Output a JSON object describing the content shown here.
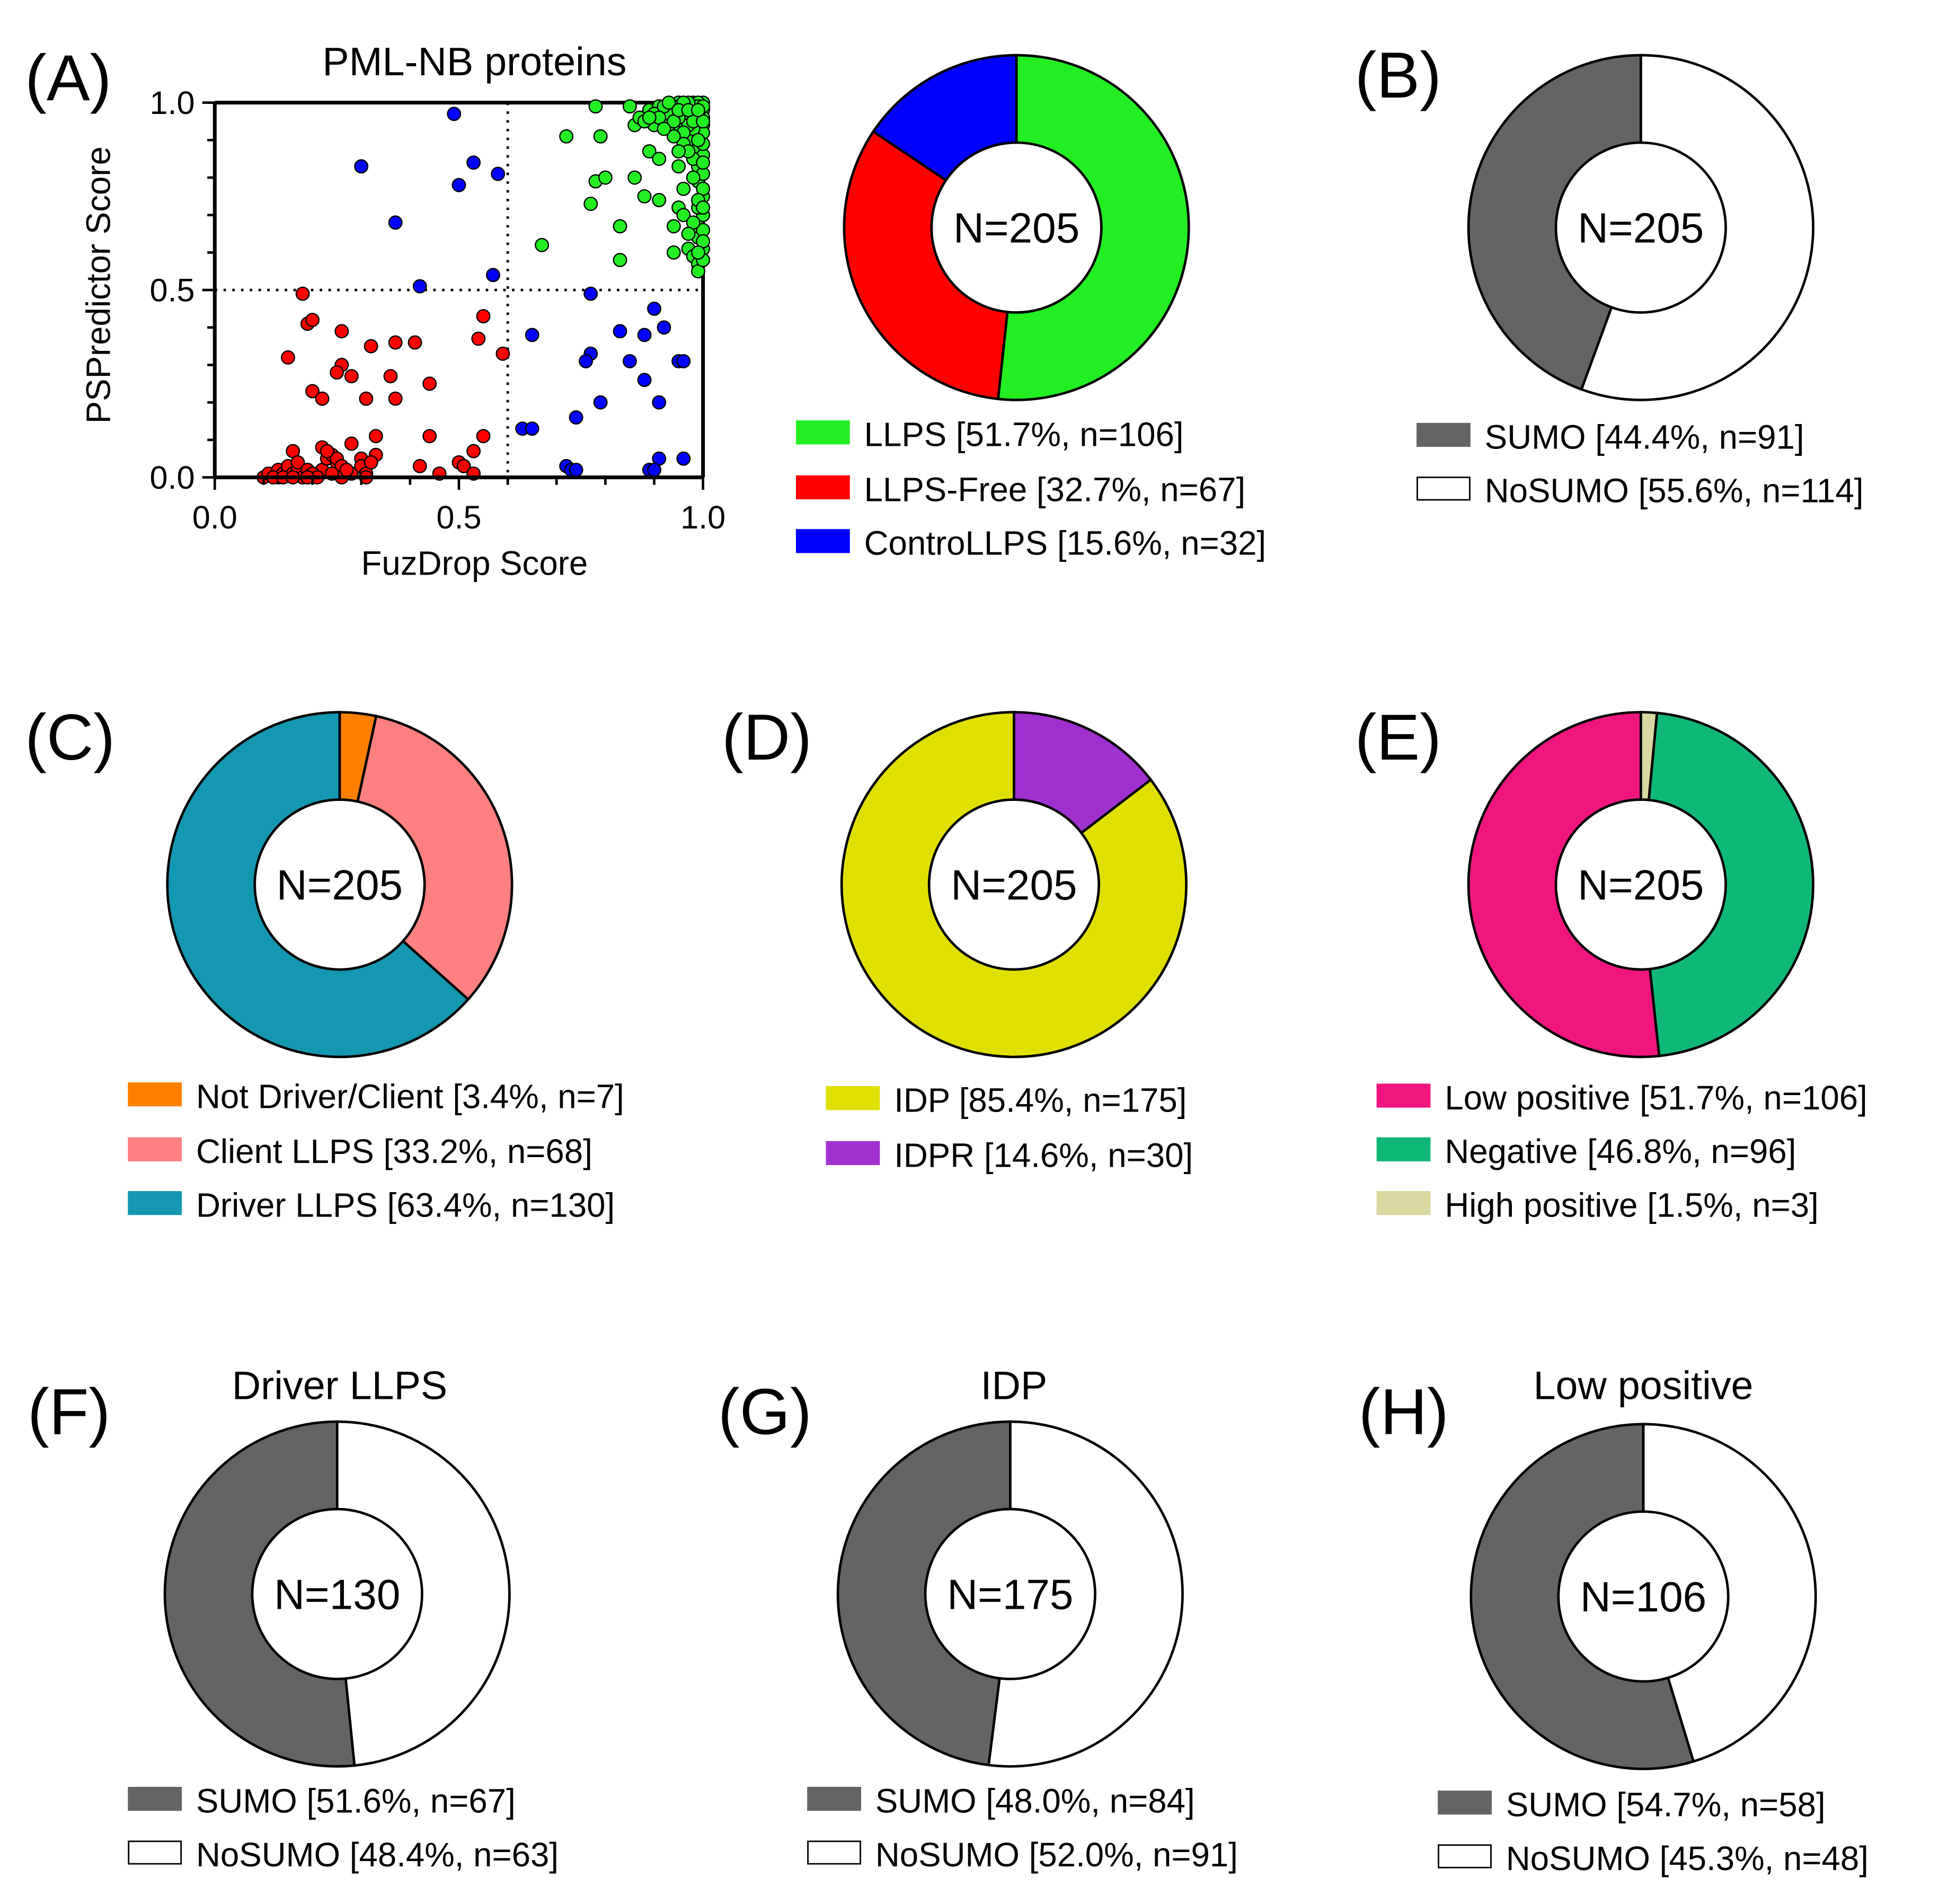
{
  "chart_data": [
    {
      "id": "A",
      "type": "scatter",
      "panel_label": "(A)",
      "title": "PML-NB proteins",
      "xlabel": "FuzDrop Score",
      "ylabel": "PSPredictor Score",
      "xlim": [
        0,
        1
      ],
      "ylim": [
        0,
        1
      ],
      "xticks": [
        "0.0",
        "0.5",
        "1.0"
      ],
      "yticks": [
        "0.0",
        "0.5",
        "1.0"
      ],
      "thresholds": {
        "x": 0.6,
        "y": 0.5
      },
      "series": [
        {
          "name": "ControLLPS",
          "color": "#0000ff",
          "points": [
            [
              0.49,
              0.97
            ],
            [
              0.3,
              0.83
            ],
            [
              0.53,
              0.84
            ],
            [
              0.5,
              0.78
            ],
            [
              0.58,
              0.81
            ],
            [
              0.37,
              0.68
            ],
            [
              0.42,
              0.51
            ],
            [
              0.57,
              0.54
            ],
            [
              0.77,
              0.49
            ],
            [
              0.9,
              0.45
            ],
            [
              0.83,
              0.39
            ],
            [
              0.92,
              0.4
            ],
            [
              0.88,
              0.38
            ],
            [
              0.65,
              0.38
            ],
            [
              0.77,
              0.33
            ],
            [
              0.76,
              0.31
            ],
            [
              0.85,
              0.31
            ],
            [
              0.95,
              0.31
            ],
            [
              0.96,
              0.31
            ],
            [
              0.88,
              0.26
            ],
            [
              0.79,
              0.2
            ],
            [
              0.91,
              0.2
            ],
            [
              0.74,
              0.16
            ],
            [
              0.63,
              0.13
            ],
            [
              0.65,
              0.13
            ],
            [
              0.72,
              0.03
            ],
            [
              0.73,
              0.02
            ],
            [
              0.74,
              0.02
            ],
            [
              0.91,
              0.05
            ],
            [
              0.96,
              0.05
            ],
            [
              0.89,
              0.02
            ],
            [
              0.9,
              0.02
            ]
          ]
        },
        {
          "name": "LLPS-Free",
          "color": "#ff0000",
          "points": [
            [
              0.18,
              0.49
            ],
            [
              0.19,
              0.41
            ],
            [
              0.2,
              0.42
            ],
            [
              0.26,
              0.39
            ],
            [
              0.15,
              0.32
            ],
            [
              0.32,
              0.35
            ],
            [
              0.37,
              0.36
            ],
            [
              0.41,
              0.36
            ],
            [
              0.55,
              0.43
            ],
            [
              0.54,
              0.37
            ],
            [
              0.59,
              0.33
            ],
            [
              0.26,
              0.3
            ],
            [
              0.25,
              0.28
            ],
            [
              0.28,
              0.27
            ],
            [
              0.36,
              0.27
            ],
            [
              0.44,
              0.25
            ],
            [
              0.2,
              0.23
            ],
            [
              0.22,
              0.21
            ],
            [
              0.31,
              0.21
            ],
            [
              0.37,
              0.21
            ],
            [
              0.44,
              0.11
            ],
            [
              0.55,
              0.11
            ],
            [
              0.33,
              0.11
            ],
            [
              0.22,
              0.08
            ],
            [
              0.28,
              0.09
            ],
            [
              0.16,
              0.07
            ],
            [
              0.53,
              0.07
            ],
            [
              0.1,
              0.0
            ],
            [
              0.11,
              0.01
            ],
            [
              0.13,
              0.0
            ],
            [
              0.13,
              0.02
            ],
            [
              0.14,
              0.01
            ],
            [
              0.15,
              0.03
            ],
            [
              0.16,
              0.01
            ],
            [
              0.17,
              0.02
            ],
            [
              0.17,
              0.04
            ],
            [
              0.18,
              0.0
            ],
            [
              0.19,
              0.02
            ],
            [
              0.21,
              0.01
            ],
            [
              0.22,
              0.02
            ],
            [
              0.23,
              0.05
            ],
            [
              0.24,
              0.06
            ],
            [
              0.25,
              0.04
            ],
            [
              0.25,
              0.05
            ],
            [
              0.26,
              0.03
            ],
            [
              0.26,
              0.0
            ],
            [
              0.28,
              0.01
            ],
            [
              0.3,
              0.05
            ],
            [
              0.3,
              0.03
            ],
            [
              0.31,
              0.01
            ],
            [
              0.31,
              0.0
            ],
            [
              0.33,
              0.06
            ],
            [
              0.42,
              0.03
            ],
            [
              0.46,
              0.01
            ],
            [
              0.5,
              0.04
            ],
            [
              0.51,
              0.03
            ],
            [
              0.53,
              0.01
            ],
            [
              0.12,
              0.0
            ],
            [
              0.14,
              0.0
            ],
            [
              0.2,
              0.01
            ],
            [
              0.23,
              0.07
            ],
            [
              0.21,
              0.0
            ],
            [
              0.27,
              0.02
            ],
            [
              0.16,
              0.0
            ],
            [
              0.24,
              0.01
            ],
            [
              0.32,
              0.04
            ],
            [
              0.19,
              0.0
            ]
          ]
        },
        {
          "name": "LLPS",
          "color": "#22ee22",
          "points": [
            [
              0.78,
              0.99
            ],
            [
              0.85,
              0.99
            ],
            [
              0.72,
              0.91
            ],
            [
              0.79,
              0.91
            ],
            [
              0.67,
              0.62
            ],
            [
              0.77,
              0.73
            ],
            [
              0.78,
              0.79
            ],
            [
              0.8,
              0.8
            ],
            [
              0.86,
              0.8
            ],
            [
              0.83,
              0.67
            ],
            [
              0.83,
              0.58
            ],
            [
              0.88,
              0.75
            ],
            [
              0.91,
              0.74
            ],
            [
              0.89,
              0.87
            ],
            [
              0.91,
              0.85
            ],
            [
              0.95,
              0.83
            ],
            [
              0.95,
              0.72
            ],
            [
              0.96,
              0.7
            ],
            [
              0.94,
              0.67
            ],
            [
              0.94,
              0.6
            ],
            [
              0.97,
              0.61
            ],
            [
              0.98,
              0.59
            ],
            [
              0.99,
              0.57
            ],
            [
              0.99,
              0.55
            ],
            [
              0.99,
              0.64
            ],
            [
              1.0,
              0.61
            ],
            [
              0.99,
              0.67
            ],
            [
              1.0,
              0.7
            ],
            [
              1.0,
              0.75
            ],
            [
              0.99,
              0.79
            ],
            [
              0.99,
              0.83
            ],
            [
              1.0,
              0.86
            ],
            [
              0.98,
              0.88
            ],
            [
              1.0,
              0.89
            ],
            [
              0.97,
              0.9
            ],
            [
              0.99,
              0.92
            ],
            [
              0.95,
              0.92
            ],
            [
              0.93,
              0.94
            ],
            [
              0.92,
              0.97
            ],
            [
              0.9,
              0.94
            ],
            [
              0.89,
              0.98
            ],
            [
              0.86,
              0.94
            ],
            [
              0.87,
              0.96
            ],
            [
              0.91,
              0.99
            ],
            [
              0.93,
              0.99
            ],
            [
              0.94,
              0.97
            ],
            [
              0.95,
              1.0
            ],
            [
              0.96,
              0.98
            ],
            [
              0.97,
              0.96
            ],
            [
              0.98,
              1.0
            ],
            [
              0.98,
              0.97
            ],
            [
              0.99,
              0.95
            ],
            [
              1.0,
              0.98
            ],
            [
              1.0,
              1.0
            ],
            [
              0.99,
              1.0
            ],
            [
              0.97,
              0.99
            ],
            [
              0.96,
              0.95
            ],
            [
              0.94,
              0.99
            ],
            [
              0.92,
              0.95
            ],
            [
              0.9,
              0.97
            ],
            [
              1.0,
              0.94
            ],
            [
              1.0,
              0.92
            ],
            [
              1.0,
              0.96
            ],
            [
              0.99,
              0.97
            ],
            [
              0.98,
              0.93
            ],
            [
              0.97,
              0.94
            ],
            [
              0.96,
              0.92
            ],
            [
              0.95,
              0.96
            ],
            [
              0.93,
              0.97
            ],
            [
              0.92,
              0.99
            ],
            [
              1.0,
              0.81
            ],
            [
              0.99,
              0.72
            ],
            [
              1.0,
              0.66
            ],
            [
              0.98,
              0.85
            ],
            [
              0.96,
              0.89
            ],
            [
              0.94,
              0.91
            ],
            [
              0.98,
              0.99
            ],
            [
              0.99,
              0.99
            ],
            [
              1.0,
              0.99
            ],
            [
              0.97,
              1.0
            ],
            [
              0.96,
              1.0
            ],
            [
              0.93,
              1.0
            ],
            [
              0.91,
              0.96
            ],
            [
              0.88,
              0.95
            ],
            [
              0.98,
              0.95
            ],
            [
              1.0,
              0.95
            ],
            [
              0.99,
              0.9
            ],
            [
              0.97,
              0.87
            ],
            [
              0.95,
              0.87
            ],
            [
              1.0,
              0.84
            ],
            [
              1.0,
              0.77
            ],
            [
              0.99,
              0.74
            ],
            [
              1.0,
              0.72
            ],
            [
              0.98,
              0.68
            ],
            [
              1.0,
              0.63
            ],
            [
              1.0,
              0.58
            ],
            [
              0.99,
              0.6
            ],
            [
              0.97,
              0.65
            ],
            [
              0.96,
              0.77
            ],
            [
              0.98,
              0.8
            ],
            [
              0.94,
              0.95
            ],
            [
              0.92,
              0.93
            ],
            [
              0.89,
              0.96
            ],
            [
              0.95,
              0.98
            ],
            [
              0.97,
              0.98
            ],
            [
              0.99,
              0.98
            ]
          ]
        }
      ]
    },
    {
      "id": "A-donut",
      "type": "pie",
      "center_label": "N=205",
      "slices": [
        {
          "name": "LLPS",
          "percent": 51.7,
          "n": 106,
          "color": "#22ee22",
          "legend": "LLPS [51.7%, n=106]"
        },
        {
          "name": "LLPS-Free",
          "percent": 32.7,
          "n": 67,
          "color": "#ff0000",
          "legend": "LLPS-Free [32.7%, n=67]"
        },
        {
          "name": "ControLLPS",
          "percent": 15.6,
          "n": 32,
          "color": "#0000ff",
          "legend": "ControLLPS [15.6%, n=32]"
        }
      ]
    },
    {
      "id": "B",
      "type": "pie",
      "panel_label": "(B)",
      "center_label": "N=205",
      "slices": [
        {
          "name": "NoSUMO",
          "percent": 55.6,
          "n": 114,
          "color": "#ffffff",
          "legend": "NoSUMO [55.6%, n=114]"
        },
        {
          "name": "SUMO",
          "percent": 44.4,
          "n": 91,
          "color": "#646464",
          "legend": "SUMO [44.4%, n=91]"
        }
      ],
      "legend_order": [
        1,
        0
      ]
    },
    {
      "id": "C",
      "type": "pie",
      "panel_label": "(C)",
      "center_label": "N=205",
      "slices": [
        {
          "name": "Not Driver/Client",
          "percent": 3.4,
          "n": 7,
          "color": "#ff8000",
          "legend": "Not Driver/Client [3.4%, n=7]"
        },
        {
          "name": "Client LLPS",
          "percent": 33.2,
          "n": 68,
          "color": "#ff8080",
          "legend": "Client LLPS [33.2%, n=68]"
        },
        {
          "name": "Driver LLPS",
          "percent": 63.4,
          "n": 130,
          "color": "#1497b0",
          "legend": "Driver LLPS [63.4%, n=130]"
        }
      ]
    },
    {
      "id": "D",
      "type": "pie",
      "panel_label": "(D)",
      "center_label": "N=205",
      "slices": [
        {
          "name": "IDPR",
          "percent": 14.6,
          "n": 30,
          "color": "#a030d0",
          "legend": "IDPR [14.6%, n=30]"
        },
        {
          "name": "IDP",
          "percent": 85.4,
          "n": 175,
          "color": "#dfe000",
          "legend": "IDP [85.4%, n=175]"
        }
      ],
      "legend_order": [
        1,
        0
      ]
    },
    {
      "id": "E",
      "type": "pie",
      "panel_label": "(E)",
      "center_label": "N=205",
      "slices": [
        {
          "name": "High positive",
          "percent": 1.5,
          "n": 3,
          "color": "#d8d8a0",
          "legend": "High positive [1.5%, n=3]"
        },
        {
          "name": "Negative",
          "percent": 46.8,
          "n": 96,
          "color": "#10b878",
          "legend": "Negative [46.8%, n=96]"
        },
        {
          "name": "Low positive",
          "percent": 51.7,
          "n": 106,
          "color": "#f0157f",
          "legend": "Low positive [51.7%, n=106]"
        }
      ],
      "legend_order": [
        2,
        1,
        0
      ]
    },
    {
      "id": "F",
      "type": "pie",
      "panel_label": "(F)",
      "title": "Driver LLPS",
      "center_label": "N=130",
      "slices": [
        {
          "name": "NoSUMO",
          "percent": 48.4,
          "n": 63,
          "color": "#ffffff",
          "legend": "NoSUMO [48.4%, n=63]"
        },
        {
          "name": "SUMO",
          "percent": 51.6,
          "n": 67,
          "color": "#646464",
          "legend": "SUMO [51.6%, n=67]"
        }
      ],
      "legend_order": [
        1,
        0
      ]
    },
    {
      "id": "G",
      "type": "pie",
      "panel_label": "(G)",
      "title": "IDP",
      "center_label": "N=175",
      "slices": [
        {
          "name": "NoSUMO",
          "percent": 52.0,
          "n": 91,
          "color": "#ffffff",
          "legend": "NoSUMO [52.0%, n=91]"
        },
        {
          "name": "SUMO",
          "percent": 48.0,
          "n": 84,
          "color": "#646464",
          "legend": "SUMO [48.0%, n=84]"
        }
      ],
      "legend_order": [
        1,
        0
      ]
    },
    {
      "id": "H",
      "type": "pie",
      "panel_label": "(H)",
      "title": "Low positive",
      "center_label": "N=106",
      "slices": [
        {
          "name": "NoSUMO",
          "percent": 45.3,
          "n": 48,
          "color": "#ffffff",
          "legend": "NoSUMO [45.3%, n=48]"
        },
        {
          "name": "SUMO",
          "percent": 54.7,
          "n": 58,
          "color": "#646464",
          "legend": "SUMO [54.7%, n=58]"
        }
      ],
      "legend_order": [
        1,
        0
      ]
    }
  ]
}
